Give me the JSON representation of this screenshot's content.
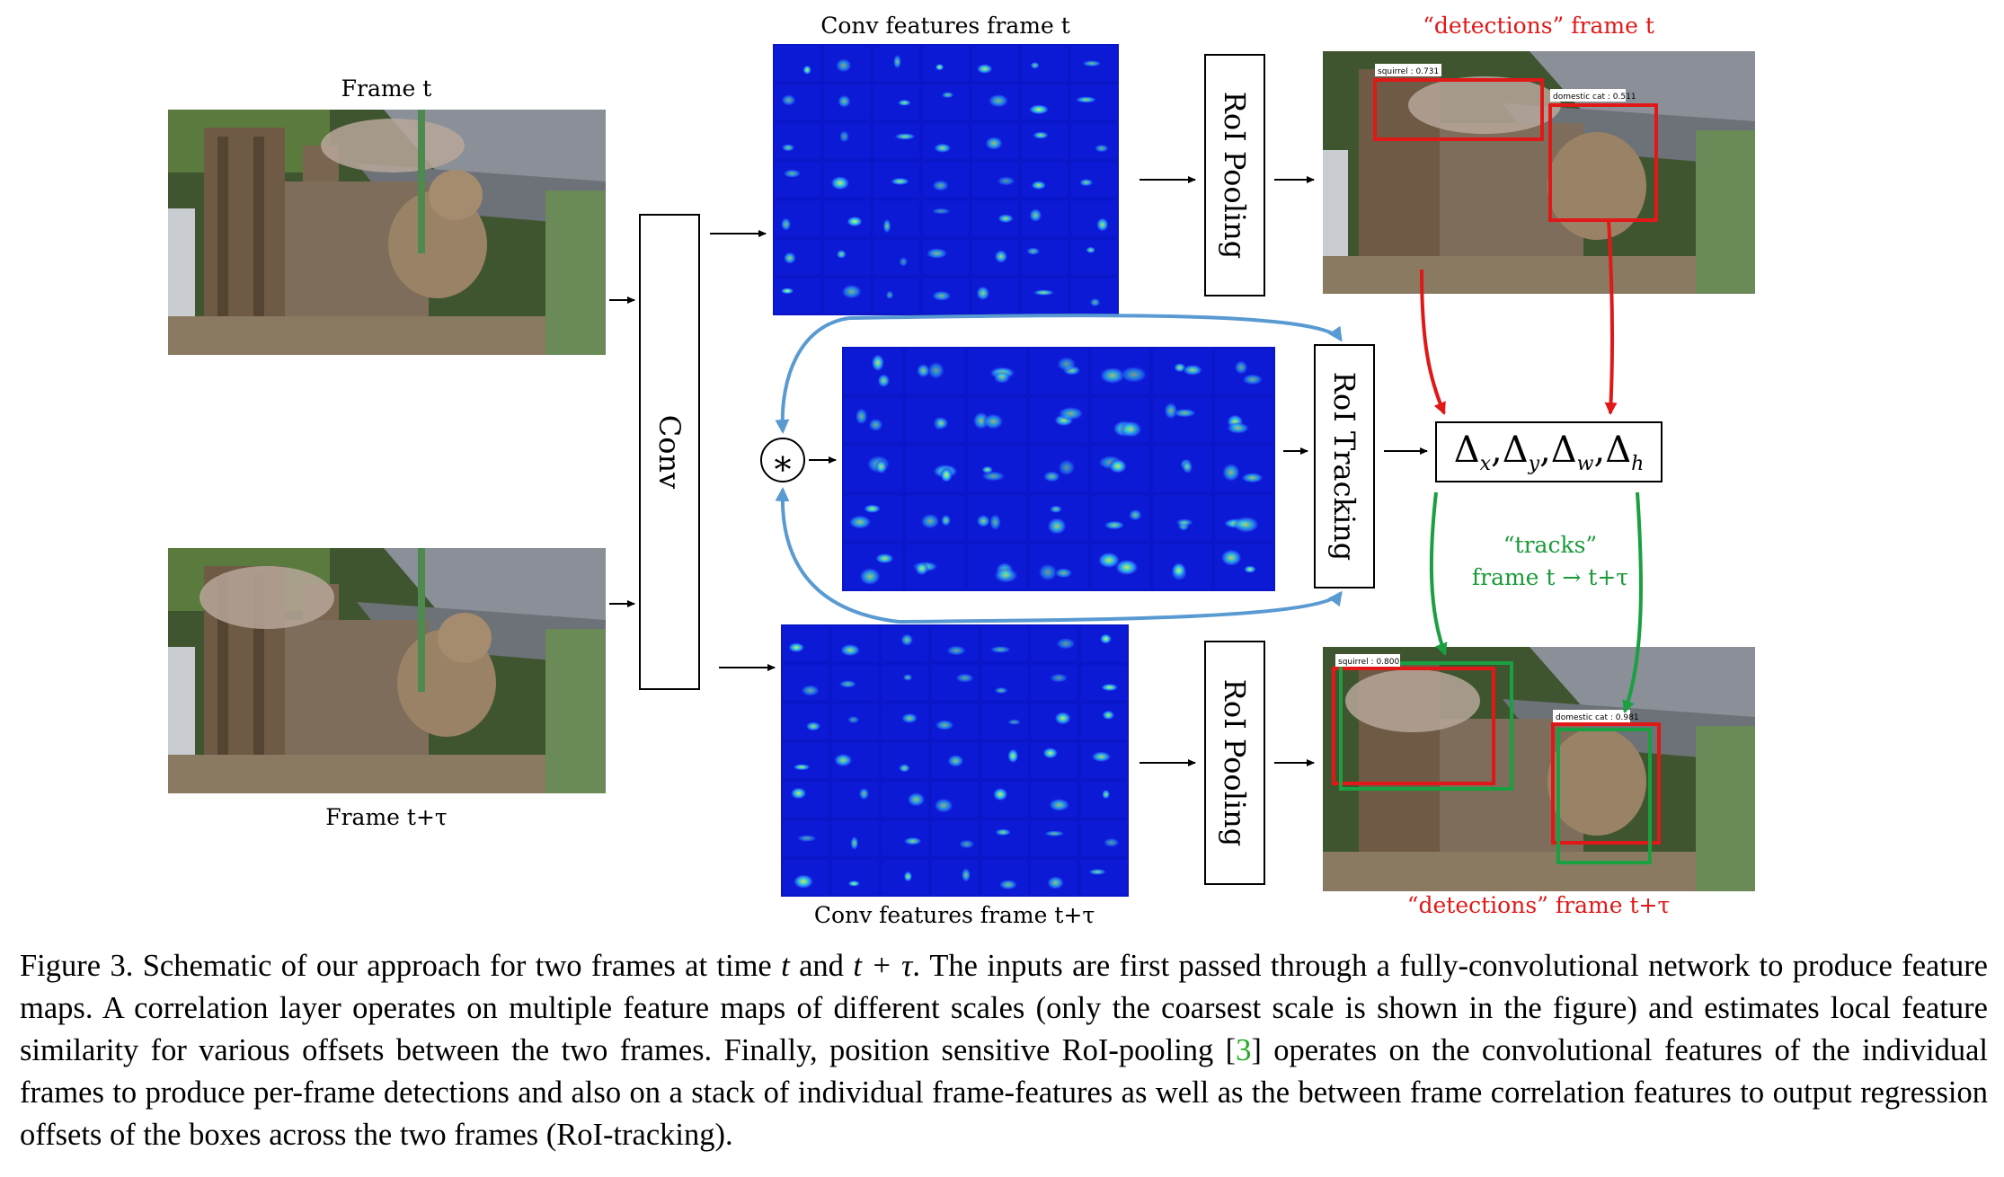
{
  "labels": {
    "frame_t": "Frame t",
    "frame_t_tau": "Frame t+τ",
    "conv_features_t": "Conv features frame t",
    "conv_features_t_tau": "Conv features frame t+τ",
    "detections_t": "“detections” frame t",
    "detections_t_tau": "“detections” frame t+τ",
    "conv": "Conv",
    "roi_pooling_top": "RoI Pooling",
    "roi_pooling_bottom": "RoI Pooling",
    "roi_tracking": "RoI Tracking",
    "correlation_symbol": "∗",
    "tracks_line1": "“tracks”",
    "tracks_line2": "frame t → t+τ",
    "delta": "Δ",
    "delta_subs": [
      "x",
      "y",
      "w",
      "h"
    ],
    "det_labels_t": [
      "squirrel : 0.731",
      "domestic cat : 0.511"
    ],
    "det_labels_t_tau": [
      "squirrel : 0.800",
      "domestic cat : 0.981"
    ]
  },
  "caption": {
    "parts": [
      "Figure 3. Schematic of our approach for two frames at time ",
      "t",
      " and ",
      "t + τ",
      ". The inputs are first passed through a fully-convolutional network to produce feature maps. A correlation layer operates on multiple feature maps of different scales (only the coarsest scale is shown in the figure) and estimates local feature similarity for various offsets between the two frames. Finally, position sensitive RoI-pooling [",
      "3",
      "] operates on the convolutional features of the individual frames to produce per-frame detections and also on a stack of individual frame-features as well as the between frame correlation features to output regression offsets of the boxes across the two frames (RoI-tracking)."
    ]
  },
  "colors": {
    "detection_box": "#e01818",
    "track_box": "#1aa040",
    "flow_arrow": "#5a9ad2",
    "feature_bg": "#0a16c8"
  }
}
